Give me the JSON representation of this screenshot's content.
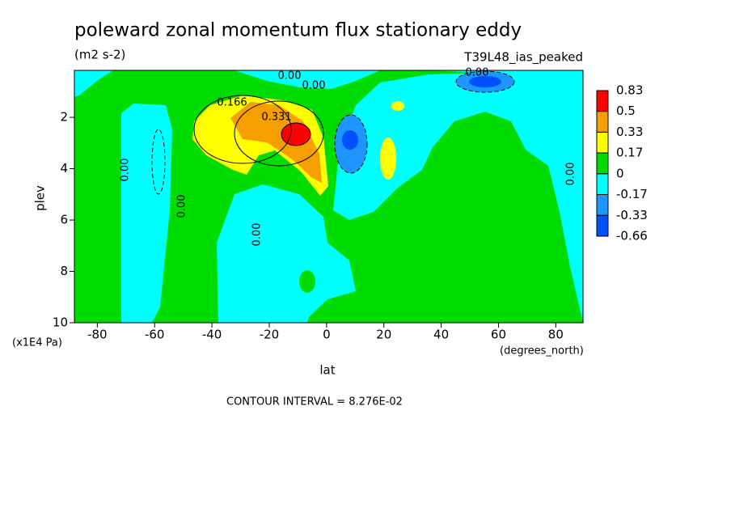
{
  "chart_data": {
    "type": "contour",
    "title": "poleward zonal momentum flux stationary eddy",
    "units": "(m2 s-2)",
    "subtitle": "T39L48_ias_peaked",
    "x_label": "lat",
    "x_units": "(degrees_north)",
    "y_label": "plev",
    "y_units": "(x1E4 Pa)",
    "note": "CONTOUR INTERVAL = 8.276E-02",
    "xlim": [
      -88,
      89.5
    ],
    "xticks": [
      -80,
      -60,
      -40,
      -20,
      0,
      20,
      40,
      60,
      80
    ],
    "ylim": [
      10,
      0.17
    ],
    "yticks": [
      2,
      4,
      6,
      8,
      10
    ],
    "colorbar": {
      "levels": [
        0.83,
        0.5,
        0.33,
        0.17,
        0,
        -0.17,
        -0.33,
        -0.66
      ],
      "colors": [
        "#ff0000",
        "#f5a000",
        "#ffff00",
        "#00dc00",
        "#00ffff",
        "#1e96ff",
        "#0050ff"
      ]
    },
    "contour_labels": [
      "0.166",
      "0.331",
      "0.00",
      "0.00",
      "0.00",
      "0.00",
      "0.00",
      "0.00",
      "0.00"
    ]
  }
}
